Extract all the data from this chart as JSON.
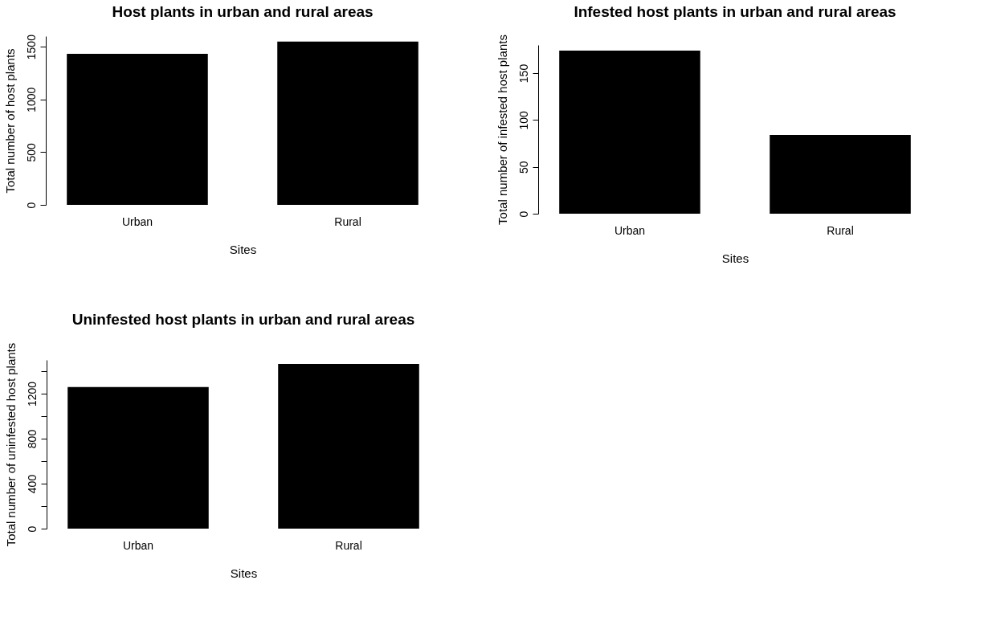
{
  "chart_data": [
    {
      "type": "bar",
      "title": "Host plants in urban and rural areas",
      "xlabel": "Sites",
      "ylabel": "Total number of host plants",
      "categories": [
        "Urban",
        "Rural"
      ],
      "values": [
        1433,
        1548
      ],
      "color": "#000000",
      "ylim": [
        0,
        1600
      ],
      "yticks": [
        0,
        500,
        1000,
        1500
      ],
      "grid": false
    },
    {
      "type": "bar",
      "title": "Infested host plants in urban and rural areas",
      "xlabel": "Sites",
      "ylabel": "Total number of infested host plants",
      "categories": [
        "Urban",
        "Rural"
      ],
      "values": [
        174,
        84
      ],
      "color": "#000000",
      "ylim": [
        0,
        180
      ],
      "yticks": [
        0,
        50,
        100,
        150
      ],
      "grid": false
    },
    {
      "type": "bar",
      "title": "Uninfested host plants in urban and rural areas",
      "xlabel": "Sites",
      "ylabel": "Total number of uninfested host plants",
      "categories": [
        "Urban",
        "Rural"
      ],
      "values": [
        1259,
        1464
      ],
      "color": "#000000",
      "ylim": [
        0,
        1500
      ],
      "yticks": [
        0,
        {
          "value": 200,
          "label": null
        },
        400,
        {
          "value": 600,
          "label": null
        },
        800,
        {
          "value": 1000,
          "label": null
        },
        1200,
        {
          "value": 1400,
          "label": null
        }
      ],
      "grid": false
    }
  ]
}
